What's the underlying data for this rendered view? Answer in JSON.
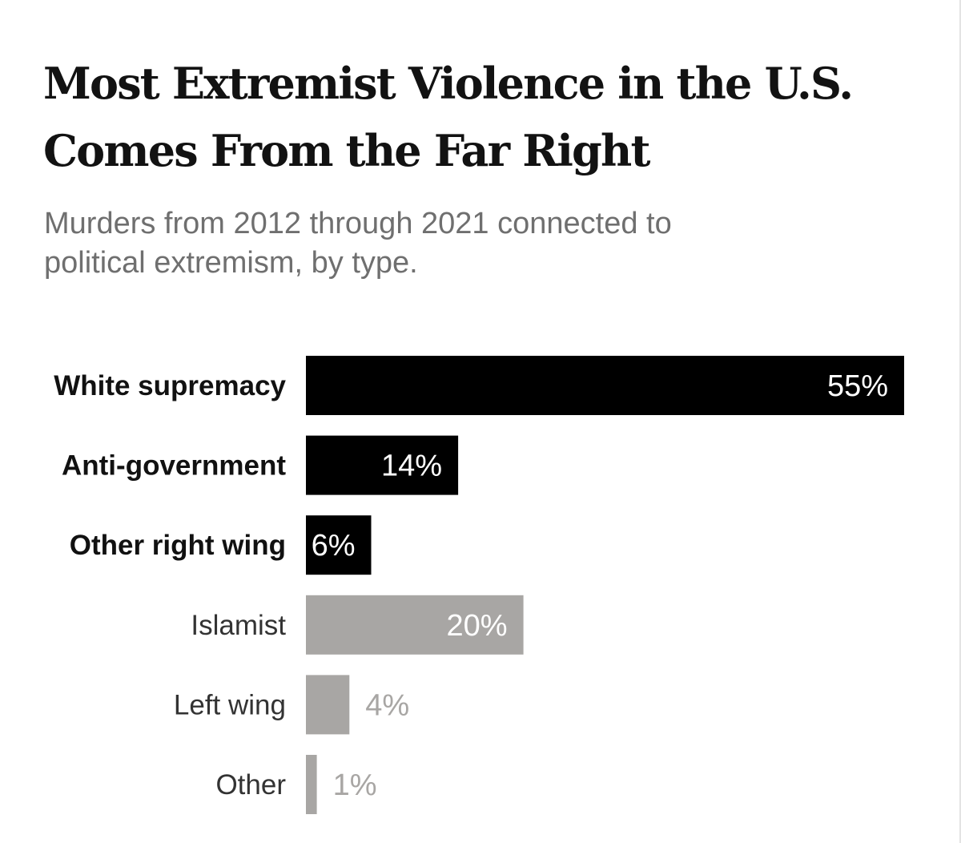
{
  "header": {
    "title_line1": "Most Extremist Violence in the U.S.",
    "title_line2": "Comes From the Far Right",
    "subtitle_line1": "Murders from 2012 through 2021 connected to",
    "subtitle_line2": "political extremism, by type."
  },
  "colors": {
    "right_wing": "#000000",
    "other": "#a8a6a4",
    "label_on_bar": "#ffffff",
    "label_off_bar": "#a8a6a4"
  },
  "chart_data": {
    "type": "bar",
    "orientation": "horizontal",
    "title": "Most Extremist Violence in the U.S. Comes From the Far Right",
    "subtitle": "Murders from 2012 through 2021 connected to political extremism, by type.",
    "unit": "%",
    "xlim": [
      0,
      55
    ],
    "categories": [
      "White supremacy",
      "Anti-government",
      "Other right wing",
      "Islamist",
      "Left wing",
      "Other"
    ],
    "values": [
      55,
      14,
      6,
      20,
      4,
      1
    ],
    "value_labels": [
      "55%",
      "14%",
      "6%",
      "20%",
      "4%",
      "1%"
    ],
    "groups": [
      "right_wing",
      "right_wing",
      "right_wing",
      "other",
      "other",
      "other"
    ],
    "grid": false,
    "legend": "none"
  }
}
